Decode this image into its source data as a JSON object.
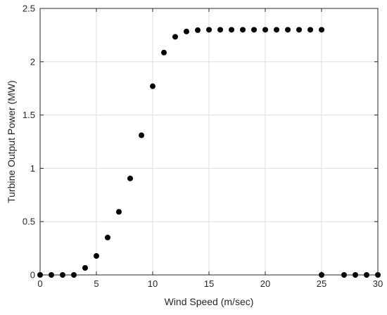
{
  "chart_data": {
    "type": "scatter",
    "title": "",
    "xlabel": "Wind Speed (m/sec)",
    "ylabel": "Turbine Output Power (MW)",
    "xlim": [
      0,
      30
    ],
    "ylim": [
      0,
      2.5
    ],
    "x_ticks": [
      0,
      5,
      10,
      15,
      20,
      25,
      30
    ],
    "y_ticks": [
      0,
      0.5,
      1,
      1.5,
      2,
      2.5
    ],
    "x_tick_labels": [
      "0",
      "5",
      "10",
      "15",
      "20",
      "25",
      "30"
    ],
    "y_tick_labels": [
      "0",
      "0.5",
      "1",
      "1.5",
      "2",
      "2.5"
    ],
    "grid": true,
    "legend": "none",
    "colors": {
      "marker": "#000000",
      "axis": "#262626",
      "grid": "#dfdfdf",
      "background": "#ffffff"
    },
    "series": [
      {
        "points": [
          {
            "x": 0,
            "y": 0
          },
          {
            "x": 1,
            "y": 0
          },
          {
            "x": 2,
            "y": 0
          },
          {
            "x": 3,
            "y": 0
          },
          {
            "x": 4,
            "y": 0.066
          },
          {
            "x": 5,
            "y": 0.178
          },
          {
            "x": 6,
            "y": 0.351
          },
          {
            "x": 7,
            "y": 0.592
          },
          {
            "x": 8,
            "y": 0.905
          },
          {
            "x": 9,
            "y": 1.31
          },
          {
            "x": 10,
            "y": 1.77
          },
          {
            "x": 11,
            "y": 2.086
          },
          {
            "x": 12,
            "y": 2.234
          },
          {
            "x": 13,
            "y": 2.284
          },
          {
            "x": 14,
            "y": 2.296
          },
          {
            "x": 15,
            "y": 2.3
          },
          {
            "x": 16,
            "y": 2.3
          },
          {
            "x": 17,
            "y": 2.3
          },
          {
            "x": 18,
            "y": 2.3
          },
          {
            "x": 19,
            "y": 2.3
          },
          {
            "x": 20,
            "y": 2.3
          },
          {
            "x": 21,
            "y": 2.3
          },
          {
            "x": 22,
            "y": 2.3
          },
          {
            "x": 23,
            "y": 2.3
          },
          {
            "x": 24,
            "y": 2.3
          },
          {
            "x": 25,
            "y": 2.3
          },
          {
            "x": 25,
            "y": 0
          },
          {
            "x": 27,
            "y": 0
          },
          {
            "x": 28,
            "y": 0
          },
          {
            "x": 29,
            "y": 0
          },
          {
            "x": 30,
            "y": 0
          }
        ]
      }
    ]
  }
}
